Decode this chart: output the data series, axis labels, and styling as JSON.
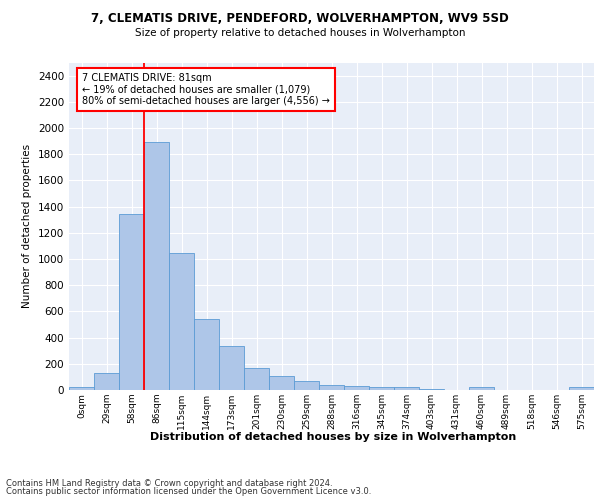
{
  "title_line1": "7, CLEMATIS DRIVE, PENDEFORD, WOLVERHAMPTON, WV9 5SD",
  "title_line2": "Size of property relative to detached houses in Wolverhampton",
  "xlabel": "Distribution of detached houses by size in Wolverhampton",
  "ylabel": "Number of detached properties",
  "footer_line1": "Contains HM Land Registry data © Crown copyright and database right 2024.",
  "footer_line2": "Contains public sector information licensed under the Open Government Licence v3.0.",
  "bin_labels": [
    "0sqm",
    "29sqm",
    "58sqm",
    "86sqm",
    "115sqm",
    "144sqm",
    "173sqm",
    "201sqm",
    "230sqm",
    "259sqm",
    "288sqm",
    "316sqm",
    "345sqm",
    "374sqm",
    "403sqm",
    "431sqm",
    "460sqm",
    "489sqm",
    "518sqm",
    "546sqm",
    "575sqm"
  ],
  "bar_values": [
    20,
    130,
    1345,
    1895,
    1045,
    545,
    335,
    170,
    110,
    65,
    40,
    30,
    25,
    20,
    10,
    0,
    20,
    0,
    0,
    0,
    20
  ],
  "bar_color": "#aec6e8",
  "bar_edge_color": "#5b9bd5",
  "annotation_line1": "7 CLEMATIS DRIVE: 81sqm",
  "annotation_line2": "← 19% of detached houses are smaller (1,079)",
  "annotation_line3": "80% of semi-detached houses are larger (4,556) →",
  "ylim": [
    0,
    2500
  ],
  "yticks": [
    0,
    200,
    400,
    600,
    800,
    1000,
    1200,
    1400,
    1600,
    1800,
    2000,
    2200,
    2400
  ],
  "bar_color_light": "#c9d9f0",
  "plot_bg_color": "#e8eef8"
}
